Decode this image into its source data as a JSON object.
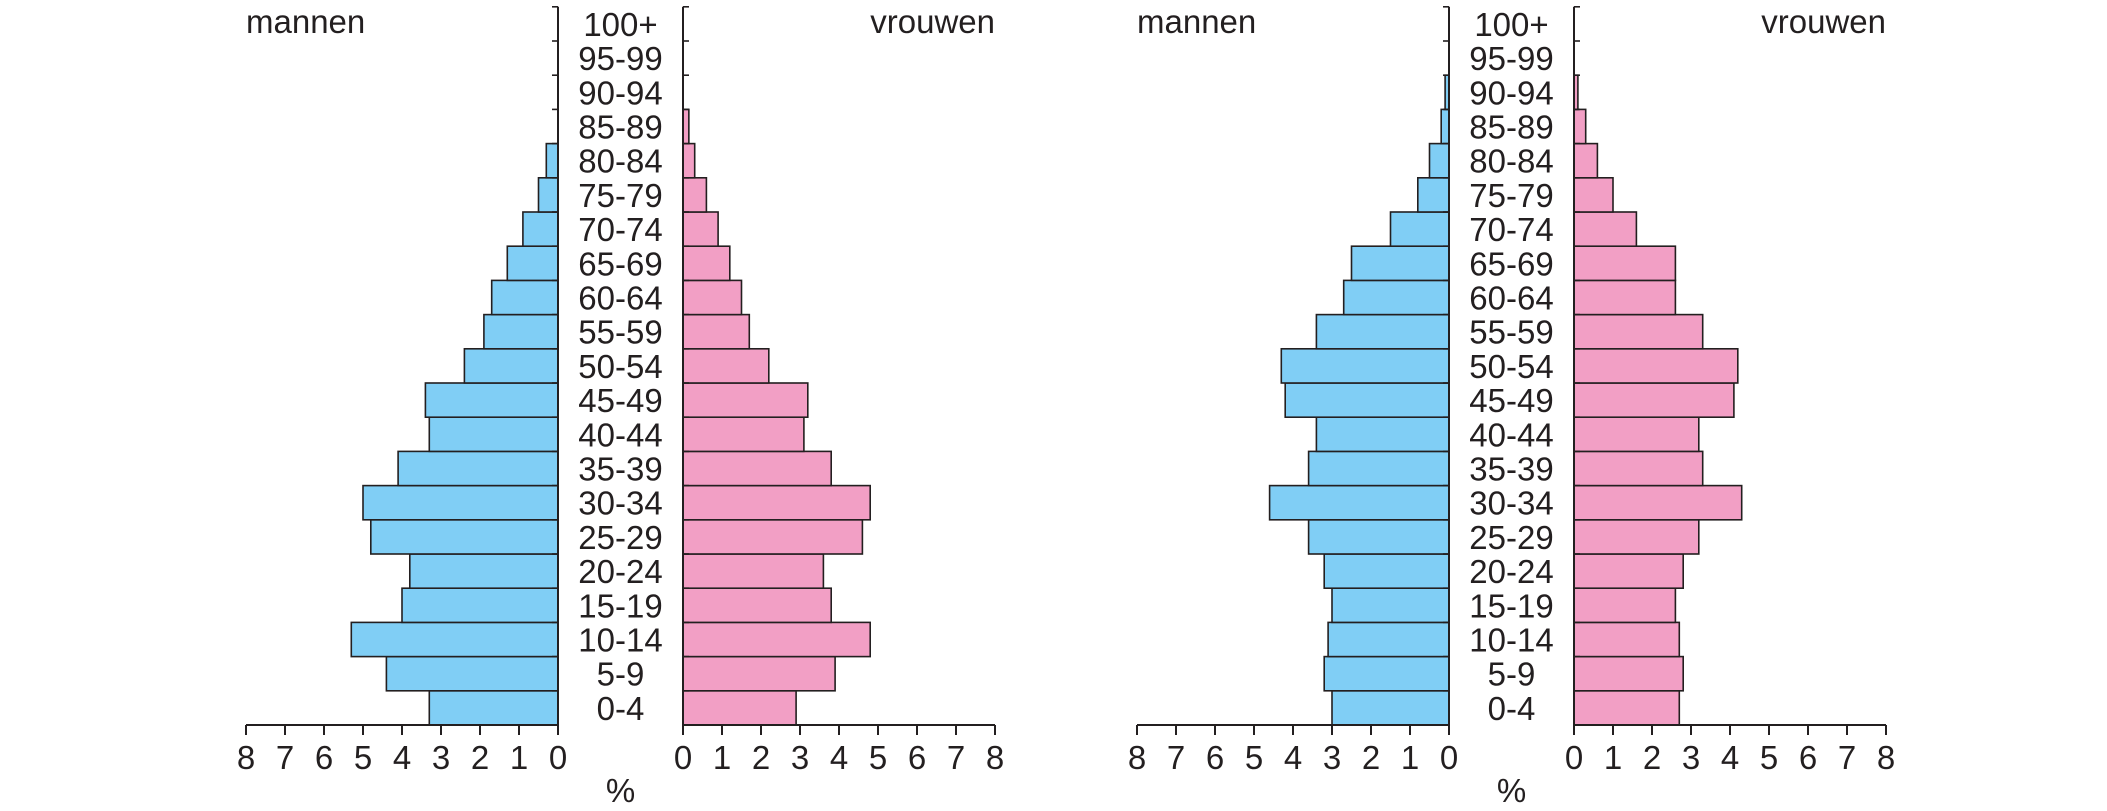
{
  "colors": {
    "male": "#80cef5",
    "female": "#f29fc5",
    "stroke": "#231f20",
    "text": "#231f20"
  },
  "chart_data": [
    {
      "type": "bar",
      "orientation": "horizontal-population-pyramid",
      "categories": [
        "0-4",
        "5-9",
        "10-14",
        "15-19",
        "20-24",
        "25-29",
        "30-34",
        "35-39",
        "40-44",
        "45-49",
        "50-54",
        "55-59",
        "60-64",
        "65-69",
        "70-74",
        "75-79",
        "80-84",
        "85-89",
        "90-94",
        "95-99",
        "100+"
      ],
      "series": [
        {
          "name": "mannen",
          "values": [
            3.3,
            4.4,
            5.3,
            4.0,
            3.8,
            4.8,
            5.0,
            4.1,
            3.3,
            3.4,
            2.4,
            1.9,
            1.7,
            1.3,
            0.9,
            0.5,
            0.3,
            0.0,
            0.0,
            0.0,
            0.0
          ]
        },
        {
          "name": "vrouwen",
          "values": [
            2.9,
            3.9,
            4.8,
            3.8,
            3.6,
            4.6,
            4.8,
            3.8,
            3.1,
            3.2,
            2.2,
            1.7,
            1.5,
            1.2,
            0.9,
            0.6,
            0.3,
            0.15,
            0.0,
            0.0,
            0.0
          ]
        }
      ],
      "xlim": [
        0,
        8
      ],
      "ticks": [
        "0",
        "1",
        "2",
        "3",
        "4",
        "5",
        "6",
        "7",
        "8"
      ],
      "xlabel": "%",
      "title": ""
    },
    {
      "type": "bar",
      "orientation": "horizontal-population-pyramid",
      "categories": [
        "0-4",
        "5-9",
        "10-14",
        "15-19",
        "20-24",
        "25-29",
        "30-34",
        "35-39",
        "40-44",
        "45-49",
        "50-54",
        "55-59",
        "60-64",
        "65-69",
        "70-74",
        "75-79",
        "80-84",
        "85-89",
        "90-94",
        "95-99",
        "100+"
      ],
      "series": [
        {
          "name": "mannen",
          "values": [
            3.0,
            3.2,
            3.1,
            3.0,
            3.2,
            3.6,
            4.6,
            3.6,
            3.4,
            4.2,
            4.3,
            3.4,
            2.7,
            2.5,
            1.5,
            0.8,
            0.5,
            0.2,
            0.1,
            0.0,
            0.0
          ]
        },
        {
          "name": "vrouwen",
          "values": [
            2.7,
            2.8,
            2.7,
            2.6,
            2.8,
            3.2,
            4.3,
            3.3,
            3.2,
            4.1,
            4.2,
            3.3,
            2.6,
            2.6,
            1.6,
            1.0,
            0.6,
            0.3,
            0.1,
            0.0,
            0.0
          ]
        }
      ],
      "xlim": [
        0,
        8
      ],
      "ticks": [
        "0",
        "1",
        "2",
        "3",
        "4",
        "5",
        "6",
        "7",
        "8"
      ],
      "xlabel": "%",
      "title": ""
    }
  ]
}
